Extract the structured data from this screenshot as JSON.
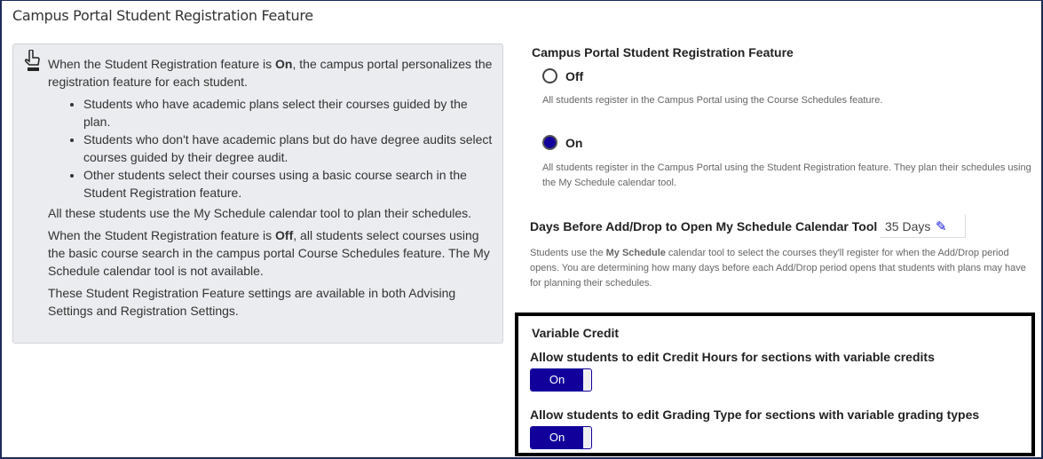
{
  "title": "Campus Portal Student Registration Feature",
  "info": {
    "icon": "pointing-hand-icon",
    "p1_a": "When the Student Registration feature is ",
    "p1_b": "On",
    "p1_c": ", the campus portal personalizes the registration feature for each student.",
    "bullets": [
      "Students who have academic plans select their courses guided by the plan.",
      "Students who don't have academic plans but do have degree audits select courses guided by their degree audit.",
      "Other students select their courses using a basic course search in the Student Registration feature."
    ],
    "p2": "All these students use the My Schedule calendar tool to plan their schedules.",
    "p3_a": "When the Student Registration feature is ",
    "p3_b": "Off",
    "p3_c": ", all students select courses using the basic course search in the campus portal Course Schedules feature. The My Schedule calendar tool is not available.",
    "p4": "These Student Registration Feature settings are available in both Advising Settings and Registration Settings."
  },
  "feature": {
    "heading": "Campus Portal Student Registration Feature",
    "off_label": "Off",
    "off_desc": "All students register in the Campus Portal using the Course Schedules feature.",
    "on_label": "On",
    "on_desc": "All students register in the Campus Portal using the Student Registration feature. They plan their schedules using the My Schedule calendar tool.",
    "selected": "On"
  },
  "days": {
    "label": "Days Before Add/Drop to Open My Schedule Calendar Tool",
    "value": "35 Days",
    "desc_a": "Students use the ",
    "desc_b": "My Schedule",
    "desc_c": " calendar tool to select the courses they'll register for when the Add/Drop period opens. You are determining how many days before each Add/Drop period opens that students with plans may have for planning their schedules."
  },
  "variable_credit": {
    "heading": "Variable Credit",
    "credit_label": "Allow students to edit Credit Hours for sections with variable credits",
    "credit_toggle": "On",
    "grading_label": "Allow students to edit Grading Type for sections with variable grading types",
    "grading_toggle": "On"
  },
  "colors": {
    "accent": "#12009a",
    "panel": "#ebecef"
  }
}
